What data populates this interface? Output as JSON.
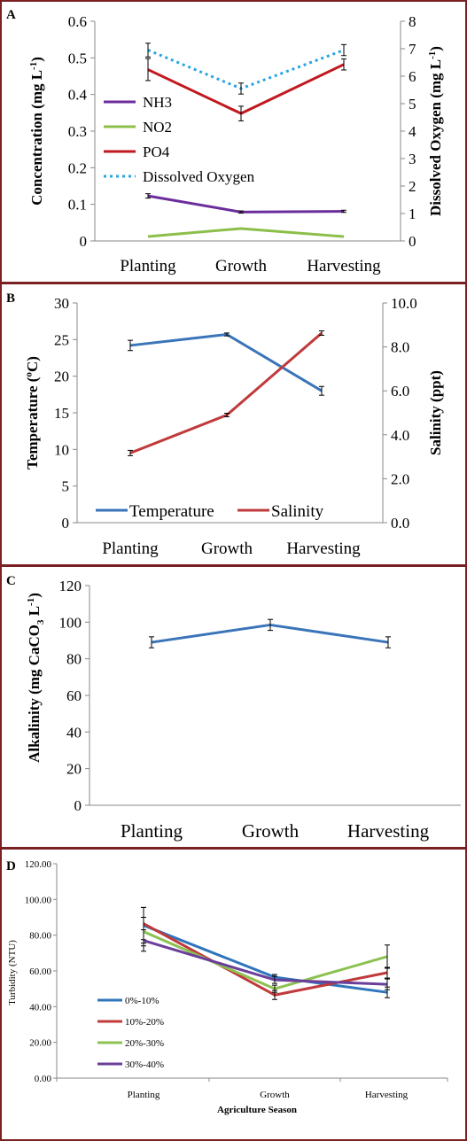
{
  "colors": {
    "frame": "#7a1f22",
    "nh3": "#6b2d9b",
    "no2": "#8cbf4a",
    "po4": "#c0191f",
    "do": "#29a5e0",
    "temperature": "#3a74b9",
    "salinity": "#c0393b",
    "alkalinity": "#3a74b9",
    "t0_10": "#2f75bb",
    "t10_20": "#c0393b",
    "t20_30": "#8cc152",
    "t30_40": "#6a3e99"
  },
  "chart_data": [
    {
      "panel": "A",
      "type": "line",
      "categories": [
        "Planting",
        "Growth",
        "Harvesting"
      ],
      "ylabel": "Concentration (mg L",
      "ylabel_sup": "-1",
      "ylabel_end": ")",
      "ylim": [
        0,
        0.6
      ],
      "yticks": [
        "0",
        "0.1",
        "0.2",
        "0.3",
        "0.4",
        "0.5",
        "0.6"
      ],
      "y2label": "Dissolved Oxygen (mg L",
      "y2label_sup": "-1",
      "y2label_end": ")",
      "y2lim": [
        0,
        8
      ],
      "y2ticks": [
        "0",
        "1",
        "2",
        "3",
        "4",
        "5",
        "6",
        "7",
        "8"
      ],
      "legend": "inside-left",
      "series": [
        {
          "name": "NH3",
          "axis": "left",
          "values": [
            0.123,
            0.079,
            0.081
          ],
          "errors": [
            0.006,
            0.003,
            0.003
          ]
        },
        {
          "name": "NO2",
          "axis": "left",
          "values": [
            0.012,
            0.034,
            0.012
          ],
          "errors": [
            0,
            0,
            0
          ]
        },
        {
          "name": "PO4",
          "axis": "left",
          "values": [
            0.468,
            0.348,
            0.482
          ],
          "errors": [
            0.03,
            0.02,
            0.015
          ]
        },
        {
          "name": "Dissolved Oxygen",
          "axis": "right",
          "values": [
            6.95,
            5.55,
            6.95
          ],
          "errors": [
            0.25,
            0.2,
            0.2
          ]
        }
      ]
    },
    {
      "panel": "B",
      "type": "line",
      "categories": [
        "Planting",
        "Growth",
        "Harvesting"
      ],
      "ylabel": "Temperature (ºC)",
      "ylim": [
        0,
        30
      ],
      "yticks": [
        "0",
        "5",
        "10",
        "15",
        "20",
        "25",
        "30"
      ],
      "y2label": "Salinity (ppt)",
      "y2lim": [
        0,
        10
      ],
      "y2ticks": [
        "0.0",
        "2.0",
        "4.0",
        "6.0",
        "8.0",
        "10.0"
      ],
      "legend": "bottom-inside",
      "series": [
        {
          "name": "Temperature",
          "axis": "left",
          "values": [
            24.2,
            25.7,
            18.0
          ],
          "errors": [
            0.7,
            0.2,
            0.6
          ]
        },
        {
          "name": "Salinity",
          "axis": "right",
          "values": [
            3.17,
            4.9,
            8.63
          ],
          "errors": [
            0.12,
            0.08,
            0.1
          ]
        }
      ]
    },
    {
      "panel": "C",
      "type": "line",
      "categories": [
        "Planting",
        "Growth",
        "Harvesting"
      ],
      "ylabel": "Alkalinity (mg CaCO",
      "ylabel_sub": "3",
      "ylabel_mid": " L",
      "ylabel_sup": "-1",
      "ylabel_end": ")",
      "ylim": [
        0,
        120
      ],
      "yticks": [
        "0",
        "20",
        "40",
        "60",
        "80",
        "100",
        "120"
      ],
      "series": [
        {
          "name": "Alkalinity",
          "axis": "left",
          "values": [
            89,
            98.5,
            89
          ],
          "errors": [
            3,
            3,
            3
          ]
        }
      ]
    },
    {
      "panel": "D",
      "type": "line",
      "categories": [
        "Planting",
        "Growth",
        "Harvesting"
      ],
      "xlabel": "Agriculture Season",
      "ylabel": "Turbidity (NTU)",
      "ylim": [
        0,
        120
      ],
      "yticks": [
        "0.00",
        "20.00",
        "40.00",
        "60.00",
        "80.00",
        "100.00",
        "120.00"
      ],
      "legend": "left",
      "series": [
        {
          "name": "0%-10%",
          "values": [
            85.5,
            56.5,
            48.0
          ],
          "errors": [
            10,
            1.5,
            3
          ]
        },
        {
          "name": "10%-20%",
          "values": [
            86.5,
            46.5,
            59.0
          ],
          "errors": [
            9,
            2.5,
            3
          ]
        },
        {
          "name": "20%-30%",
          "values": [
            82.0,
            50.0,
            68.0
          ],
          "errors": [
            8,
            2,
            6.5
          ]
        },
        {
          "name": "30%-40%",
          "values": [
            77.0,
            55.0,
            52.5
          ],
          "errors": [
            6,
            2,
            3
          ]
        }
      ]
    }
  ]
}
